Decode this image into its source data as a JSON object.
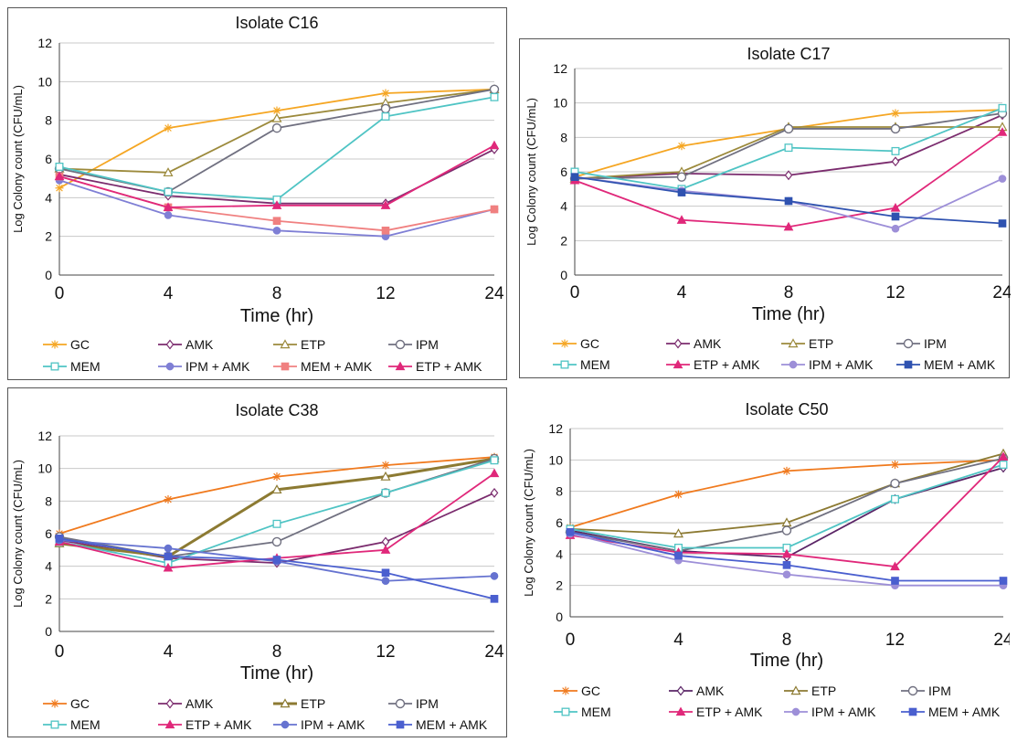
{
  "chart_data": [
    {
      "type": "line",
      "title": "Isolate C16",
      "xlabel": "Time (hr)",
      "ylabel": "Log Colony count (CFU/mL)",
      "x": [
        "0",
        "4",
        "8",
        "12",
        "24"
      ],
      "yticks": [
        "0",
        "2",
        "4",
        "6",
        "8",
        "10",
        "12"
      ],
      "ylim": [
        0,
        12
      ],
      "grid": true,
      "legend_position": "bottom",
      "series": [
        {
          "name": "GC",
          "color": "#f5a623",
          "marker": "star",
          "values": [
            4.5,
            7.6,
            8.5,
            9.4,
            9.6
          ]
        },
        {
          "name": "AMK",
          "color": "#7b2c6e",
          "marker": "diamond",
          "values": [
            5.2,
            4.1,
            3.7,
            3.7,
            6.5
          ]
        },
        {
          "name": "ETP",
          "color": "#9c8a3c",
          "marker": "triangle",
          "values": [
            5.5,
            5.3,
            8.1,
            8.9,
            9.6
          ]
        },
        {
          "name": "IPM",
          "color": "#707080",
          "marker": "circle",
          "values": [
            5.5,
            4.3,
            7.6,
            8.6,
            9.6
          ]
        },
        {
          "name": "MEM",
          "color": "#4fc4c4",
          "marker": "square-open",
          "values": [
            5.6,
            4.3,
            3.9,
            8.2,
            9.2
          ]
        },
        {
          "name": "IPM + AMK",
          "color": "#7f7fd5",
          "marker": "dot",
          "values": [
            4.9,
            3.1,
            2.3,
            2.0,
            3.4
          ]
        },
        {
          "name": "MEM + AMK",
          "color": "#f08080",
          "marker": "square",
          "values": [
            5.1,
            3.5,
            2.8,
            2.3,
            3.4
          ]
        },
        {
          "name": "ETP + AMK",
          "color": "#e0287a",
          "marker": "triangle-filled",
          "values": [
            5.1,
            3.5,
            3.6,
            3.6,
            6.7
          ]
        }
      ]
    },
    {
      "type": "line",
      "title": "Isolate C17",
      "xlabel": "Time (hr)",
      "ylabel": "Log Colony count (CFU/mL)",
      "x": [
        "0",
        "4",
        "8",
        "12",
        "24"
      ],
      "yticks": [
        "0",
        "2",
        "4",
        "6",
        "8",
        "10",
        "12"
      ],
      "ylim": [
        0,
        12
      ],
      "grid": true,
      "legend_position": "bottom",
      "series": [
        {
          "name": "GC",
          "color": "#f5a623",
          "marker": "star",
          "values": [
            5.7,
            7.5,
            8.5,
            9.4,
            9.6
          ]
        },
        {
          "name": "AMK",
          "color": "#7b2c6e",
          "marker": "diamond",
          "values": [
            5.6,
            5.9,
            5.8,
            6.6,
            9.3
          ]
        },
        {
          "name": "ETP",
          "color": "#9c8a3c",
          "marker": "triangle",
          "values": [
            5.6,
            6.0,
            8.6,
            8.6,
            8.6
          ]
        },
        {
          "name": "IPM",
          "color": "#707080",
          "marker": "circle",
          "values": [
            5.6,
            5.7,
            8.5,
            8.5,
            9.4
          ]
        },
        {
          "name": "MEM",
          "color": "#4fc4c4",
          "marker": "square-open",
          "values": [
            6.0,
            5.0,
            7.4,
            7.2,
            9.7
          ]
        },
        {
          "name": "ETP + AMK",
          "color": "#e0287a",
          "marker": "triangle-filled",
          "values": [
            5.5,
            3.2,
            2.8,
            3.9,
            8.3
          ]
        },
        {
          "name": "IPM + AMK",
          "color": "#9d8fd8",
          "marker": "dot",
          "values": [
            5.7,
            4.9,
            4.3,
            2.7,
            5.6
          ]
        },
        {
          "name": "MEM + AMK",
          "color": "#2f52b0",
          "marker": "square",
          "values": [
            5.7,
            4.8,
            4.3,
            3.4,
            3.0
          ]
        }
      ]
    },
    {
      "type": "line",
      "title": "Isolate C38",
      "xlabel": "Time (hr)",
      "ylabel": "Log Colony count (CFU/mL)",
      "x": [
        "0",
        "4",
        "8",
        "12",
        "24"
      ],
      "yticks": [
        "0",
        "2",
        "4",
        "6",
        "8",
        "10",
        "12"
      ],
      "ylim": [
        0,
        12
      ],
      "grid": true,
      "legend_position": "bottom",
      "series": [
        {
          "name": "GC",
          "color": "#f07a1e",
          "marker": "star",
          "values": [
            6.0,
            8.1,
            9.5,
            10.2,
            10.7
          ]
        },
        {
          "name": "AMK",
          "color": "#7b2c6e",
          "marker": "diamond",
          "values": [
            5.6,
            4.5,
            4.2,
            5.5,
            8.5
          ]
        },
        {
          "name": "ETP",
          "color": "#8c7a32",
          "marker": "triangle",
          "values": [
            5.4,
            4.6,
            8.7,
            9.5,
            10.6
          ]
        },
        {
          "name": "IPM",
          "color": "#707080",
          "marker": "circle",
          "values": [
            5.8,
            4.6,
            5.5,
            8.5,
            10.6
          ]
        },
        {
          "name": "MEM",
          "color": "#4fc4c4",
          "marker": "square-open",
          "values": [
            5.5,
            4.2,
            6.6,
            8.5,
            10.5
          ]
        },
        {
          "name": "ETP + AMK",
          "color": "#e0287a",
          "marker": "triangle-filled",
          "values": [
            5.5,
            3.9,
            4.5,
            5.0,
            9.7
          ]
        },
        {
          "name": "IPM + AMK",
          "color": "#6673d0",
          "marker": "dot",
          "values": [
            5.6,
            5.1,
            4.3,
            3.1,
            3.4
          ]
        },
        {
          "name": "MEM + AMK",
          "color": "#4a5fcf",
          "marker": "square",
          "values": [
            5.7,
            4.6,
            4.4,
            3.6,
            2.0
          ]
        }
      ]
    },
    {
      "type": "line",
      "title": "Isolate C50",
      "xlabel": "Time (hr)",
      "ylabel": "Log Colony count (CFU/mL)",
      "x": [
        "0",
        "4",
        "8",
        "12",
        "24"
      ],
      "yticks": [
        "0",
        "2",
        "4",
        "6",
        "8",
        "10",
        "12"
      ],
      "ylim": [
        0,
        12
      ],
      "grid": true,
      "legend_position": "bottom",
      "series": [
        {
          "name": "GC",
          "color": "#f07a1e",
          "marker": "star",
          "values": [
            5.7,
            7.8,
            9.3,
            9.7,
            10.0
          ]
        },
        {
          "name": "AMK",
          "color": "#5a2466",
          "marker": "diamond",
          "values": [
            5.5,
            4.2,
            3.8,
            7.5,
            9.5
          ]
        },
        {
          "name": "ETP",
          "color": "#8c7a32",
          "marker": "triangle",
          "values": [
            5.6,
            5.3,
            6.0,
            8.5,
            10.4
          ]
        },
        {
          "name": "IPM",
          "color": "#707080",
          "marker": "circle",
          "values": [
            5.4,
            4.2,
            5.5,
            8.5,
            10.1
          ]
        },
        {
          "name": "MEM",
          "color": "#4fc4c4",
          "marker": "square-open",
          "values": [
            5.6,
            4.4,
            4.4,
            7.5,
            9.7
          ]
        },
        {
          "name": "ETP + AMK",
          "color": "#e0287a",
          "marker": "triangle-filled",
          "values": [
            5.2,
            4.1,
            4.0,
            3.2,
            10.2
          ]
        },
        {
          "name": "IPM + AMK",
          "color": "#9d8fd8",
          "marker": "dot",
          "values": [
            5.3,
            3.6,
            2.7,
            2.0,
            2.0
          ]
        },
        {
          "name": "MEM + AMK",
          "color": "#4a5fcf",
          "marker": "square",
          "values": [
            5.4,
            3.9,
            3.3,
            2.3,
            2.3
          ]
        }
      ]
    }
  ]
}
